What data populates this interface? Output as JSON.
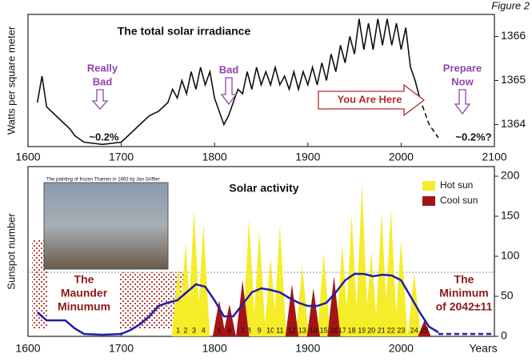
{
  "figure_label": "Figure 2",
  "chart_data": [
    {
      "type": "line",
      "title": "The total solar irradiance",
      "ylabel": "Watts per square meter",
      "xlim": [
        1600,
        2100
      ],
      "xticks": [
        1600,
        1700,
        1800,
        1900,
        2000,
        2100
      ],
      "ylim": [
        1363.5,
        1366.5
      ],
      "yticks": [
        1364,
        1365,
        1366
      ],
      "series": [
        {
          "color": "#111111",
          "dashed": false,
          "x": [
            1610,
            1615,
            1620,
            1625,
            1630,
            1640,
            1645,
            1650,
            1660,
            1680,
            1700,
            1710,
            1720,
            1730,
            1740,
            1750,
            1755,
            1760,
            1765,
            1770,
            1775,
            1780,
            1785,
            1790,
            1795,
            1800,
            1805,
            1810,
            1815,
            1820,
            1825,
            1830,
            1835,
            1840,
            1845,
            1850,
            1855,
            1860,
            1865,
            1870,
            1875,
            1880,
            1885,
            1890,
            1895,
            1900,
            1905,
            1910,
            1915,
            1920,
            1925,
            1930,
            1935,
            1940,
            1945,
            1950,
            1955,
            1960,
            1965,
            1970,
            1975,
            1980,
            1985,
            1990,
            1995,
            2000,
            2005,
            2010,
            2015,
            2020
          ],
          "values": [
            1364.5,
            1365.1,
            1364.4,
            1364.3,
            1364.2,
            1364.0,
            1363.9,
            1363.75,
            1363.6,
            1363.55,
            1363.6,
            1363.8,
            1364.0,
            1364.2,
            1364.3,
            1364.5,
            1364.8,
            1364.6,
            1365.0,
            1364.7,
            1365.2,
            1364.8,
            1365.3,
            1364.9,
            1365.2,
            1364.6,
            1364.3,
            1364.0,
            1364.2,
            1364.5,
            1364.8,
            1364.7,
            1365.2,
            1364.8,
            1365.3,
            1364.9,
            1365.2,
            1364.9,
            1365.3,
            1364.9,
            1365.1,
            1364.8,
            1365.2,
            1364.8,
            1365.2,
            1364.9,
            1365.3,
            1364.9,
            1365.4,
            1365.0,
            1365.6,
            1365.2,
            1365.8,
            1365.4,
            1366.0,
            1365.6,
            1366.4,
            1365.7,
            1366.3,
            1365.7,
            1366.4,
            1365.8,
            1366.4,
            1365.8,
            1366.3,
            1365.7,
            1366.2,
            1365.3,
            1365.0,
            1364.6
          ]
        },
        {
          "color": "#111111",
          "dashed": true,
          "x": [
            2020,
            2030,
            2040
          ],
          "values": [
            1364.6,
            1364.0,
            1363.7
          ]
        }
      ],
      "annotations": [
        {
          "lines": [
            "Really",
            "Bad"
          ],
          "color": "#8e44ad"
        },
        {
          "lines": [
            "Bad"
          ],
          "color": "#8e44ad"
        },
        {
          "lines": [
            "Prepare",
            "Now"
          ],
          "color": "#8e44ad"
        },
        {
          "lines": [
            "You Are Here"
          ],
          "color": "#b03030"
        },
        {
          "lines": [
            "~0.2%"
          ],
          "color": "#111111"
        },
        {
          "lines": [
            "~0.2%?"
          ],
          "color": "#111111"
        }
      ]
    },
    {
      "type": "area",
      "title": "Solar activity",
      "ylabel": "Sunspot number",
      "xlabel": "Years",
      "xlim": [
        1600,
        2100
      ],
      "xticks": [
        1600,
        1700,
        1800,
        1900,
        2000
      ],
      "ylim": [
        0,
        212
      ],
      "yticks": [
        0,
        50,
        100,
        150,
        200
      ],
      "reference_line": 80,
      "inset_caption": "The painting of frozen Thames in 1663 by Jan Griffier",
      "series": [
        {
          "name": "Hot sun",
          "color": "#f5ec2a",
          "kind": "spikes",
          "x": [
            1761,
            1769,
            1778,
            1788,
            1837,
            1848,
            1860,
            1870,
            1894,
            1917,
            1937,
            1947,
            1958,
            1968,
            1979,
            1989,
            2000,
            2014
          ],
          "values": [
            86,
            116,
            158,
            141,
            146,
            131,
            98,
            140,
            88,
            104,
            114,
            152,
            190,
            106,
            155,
            158,
            120,
            80
          ],
          "labels": [
            "1",
            "2",
            "3",
            "4",
            "8",
            "9",
            "10",
            "11",
            "13",
            "15",
            "17",
            "18",
            "19",
            "20",
            "21",
            "22",
            "23",
            "24"
          ]
        },
        {
          "name": "Cool sun",
          "color": "#a31515",
          "kind": "spikes",
          "x": [
            1805,
            1816,
            1830,
            1883,
            1906,
            1928,
            2025
          ],
          "values": [
            45,
            40,
            70,
            65,
            60,
            75,
            20
          ],
          "labels": [
            "5",
            "6",
            "7",
            "12",
            "14",
            "16",
            "25"
          ]
        },
        {
          "color": "#1f1fa8",
          "kind": "line",
          "dashed": false,
          "x": [
            1610,
            1620,
            1640,
            1650,
            1660,
            1680,
            1700,
            1710,
            1720,
            1730,
            1740,
            1750,
            1760,
            1770,
            1780,
            1790,
            1800,
            1810,
            1820,
            1830,
            1840,
            1850,
            1860,
            1870,
            1880,
            1890,
            1900,
            1910,
            1920,
            1930,
            1940,
            1950,
            1960,
            1970,
            1980,
            1990,
            2000,
            2010,
            2020,
            2030,
            2040
          ],
          "values": [
            30,
            20,
            20,
            10,
            3,
            2,
            3,
            8,
            15,
            25,
            38,
            42,
            45,
            55,
            65,
            62,
            45,
            25,
            25,
            40,
            55,
            60,
            58,
            55,
            48,
            42,
            38,
            38,
            42,
            55,
            70,
            78,
            78,
            75,
            77,
            76,
            70,
            50,
            30,
            12,
            5
          ]
        },
        {
          "color": "#1f1fa8",
          "kind": "line",
          "dashed": true,
          "x": [
            2040,
            2100
          ],
          "values": [
            3,
            3
          ]
        }
      ],
      "annotations": [
        {
          "lines": [
            "The",
            "Maunder",
            "Minumum"
          ],
          "color": "#8b1a1a"
        },
        {
          "lines": [
            "The",
            "Minimum",
            "of 2042±11"
          ],
          "color": "#8b1a1a"
        }
      ]
    }
  ]
}
